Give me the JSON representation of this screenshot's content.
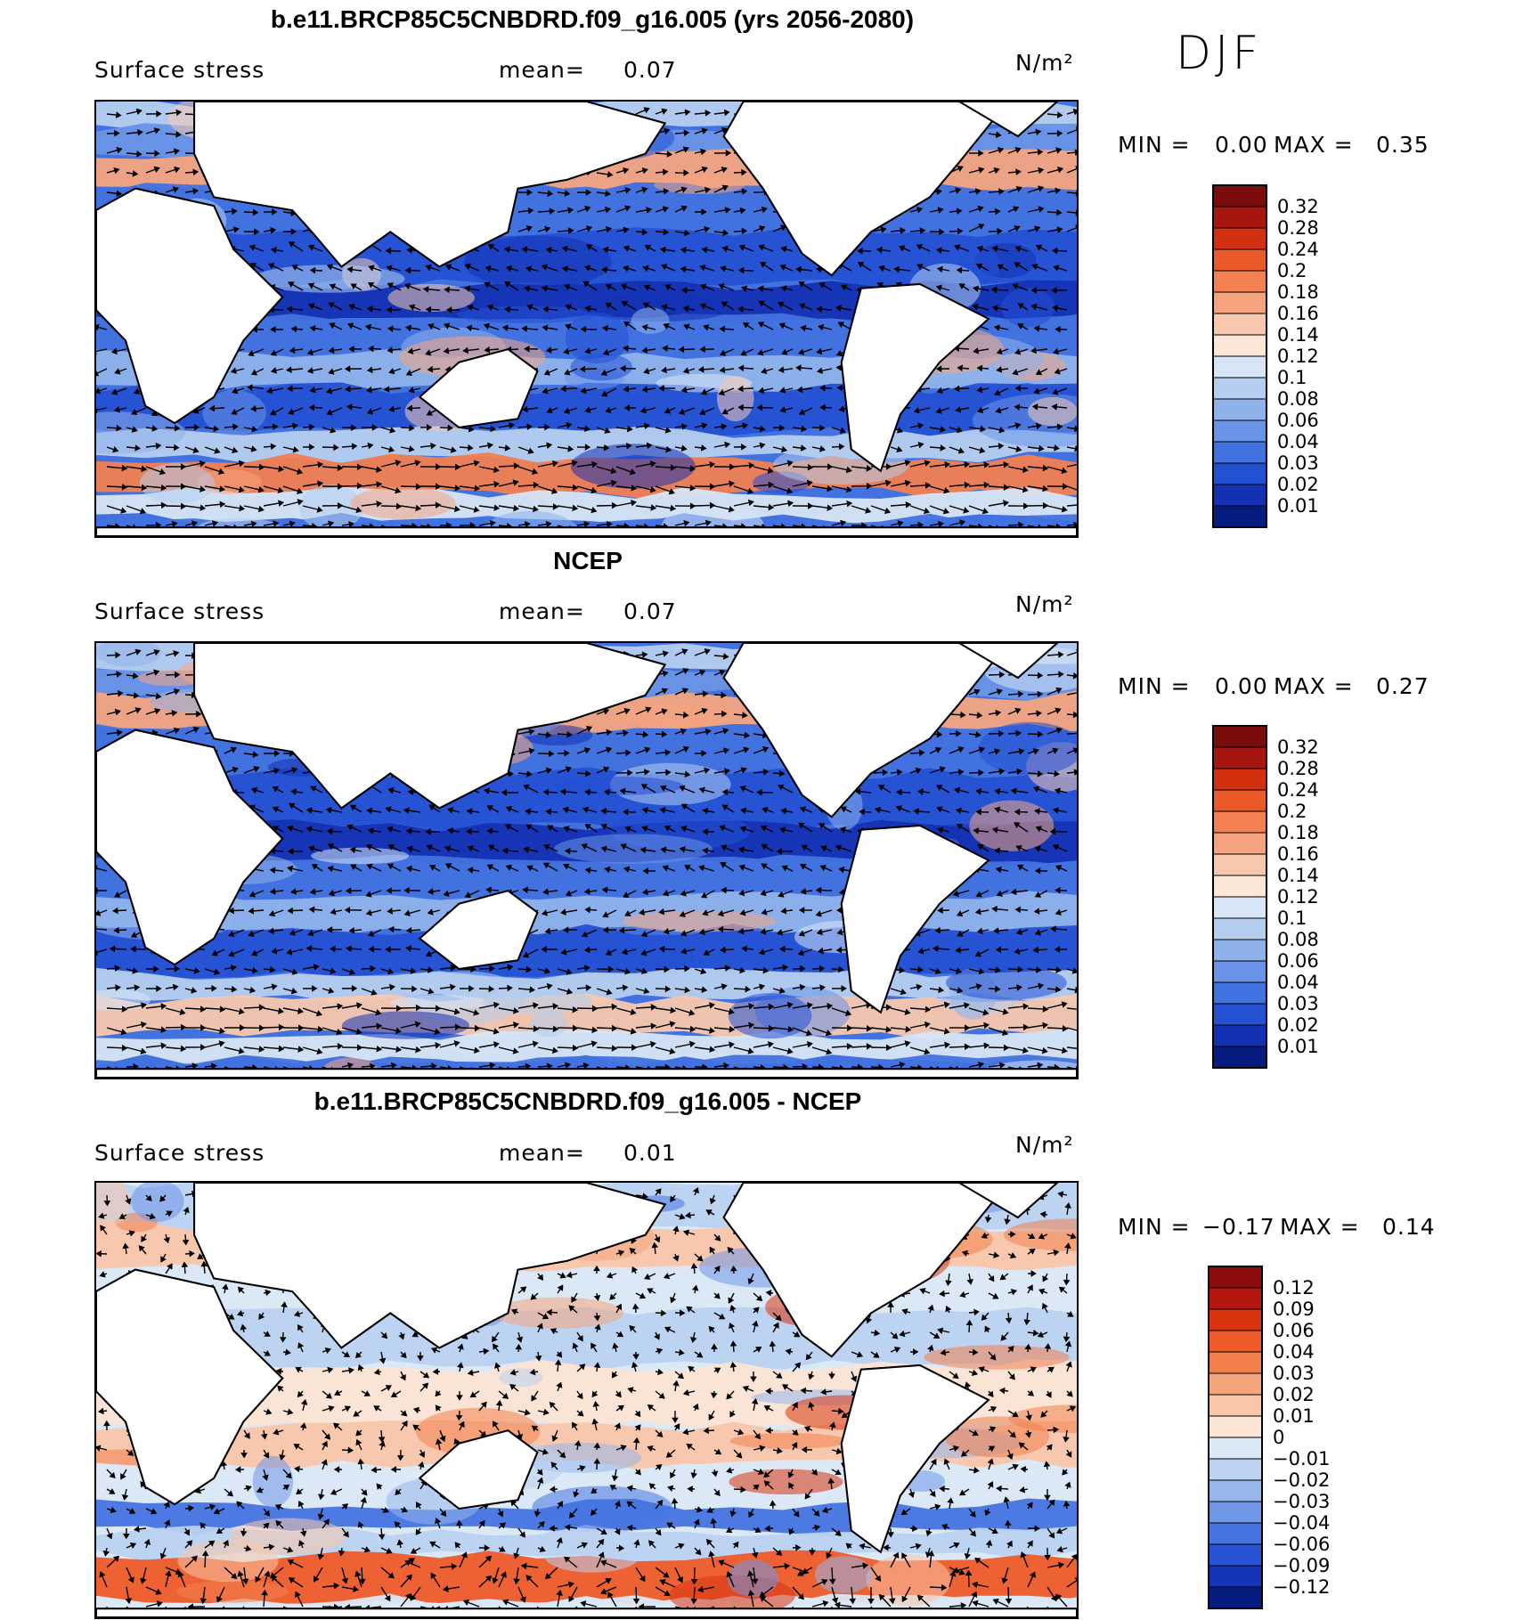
{
  "season": "DJF",
  "panels": [
    {
      "title": "b.e11.BRCP85C5CNBDRD.f09_g16.005 (yrs 2056-2080)",
      "variable": "Surface stress",
      "mean_label": "mean=",
      "mean_value": "0.07",
      "units": "N/m²",
      "min_label": "MIN =",
      "min_value": "0.00",
      "max_label": "MAX =",
      "max_value": "0.35",
      "colorbar": [
        "0.32",
        "0.28",
        "0.24",
        "0.2",
        "0.18",
        "0.16",
        "0.14",
        "0.12",
        "0.1",
        "0.08",
        "0.06",
        "0.04",
        "0.03",
        "0.02",
        "0.01"
      ]
    },
    {
      "title": "NCEP",
      "variable": "Surface stress",
      "mean_label": "mean=",
      "mean_value": "0.07",
      "units": "N/m²",
      "min_label": "MIN =",
      "min_value": "0.00",
      "max_label": "MAX =",
      "max_value": "0.27",
      "colorbar": [
        "0.32",
        "0.28",
        "0.24",
        "0.2",
        "0.18",
        "0.16",
        "0.14",
        "0.12",
        "0.1",
        "0.08",
        "0.06",
        "0.04",
        "0.03",
        "0.02",
        "0.01"
      ]
    },
    {
      "title": "b.e11.BRCP85C5CNBDRD.f09_g16.005 - NCEP",
      "variable": "Surface stress",
      "mean_label": "mean=",
      "mean_value": "0.01",
      "units": "N/m²",
      "min_label": "MIN =",
      "min_value": "−0.17",
      "max_label": "MAX =",
      "max_value": "0.14",
      "colorbar": [
        "0.12",
        "0.09",
        "0.06",
        "0.04",
        "0.03",
        "0.02",
        "0.01",
        "0",
        "−0.01",
        "−0.02",
        "−0.03",
        "−0.04",
        "−0.06",
        "−0.09",
        "−0.12"
      ]
    }
  ],
  "colors": {
    "abs_scale": [
      "#7a0c0c",
      "#a8170f",
      "#d2300f",
      "#ea5a28",
      "#f28050",
      "#f5a47f",
      "#f8c8ae",
      "#fbe6d8",
      "#d7e6f6",
      "#b5cdef",
      "#8fb2ea",
      "#6993e6",
      "#4272df",
      "#2451d3",
      "#1431b3",
      "#071c80"
    ],
    "diff_scale": [
      "#8a0c0c",
      "#b4170f",
      "#d8340f",
      "#ee5a28",
      "#f2804c",
      "#f6a47c",
      "#f9c6aa",
      "#fbe4d4",
      "#dbe8f6",
      "#bcd2f1",
      "#96b6ec",
      "#6f96e7",
      "#4674e0",
      "#2753d6",
      "#1434b8",
      "#071c80"
    ]
  }
}
